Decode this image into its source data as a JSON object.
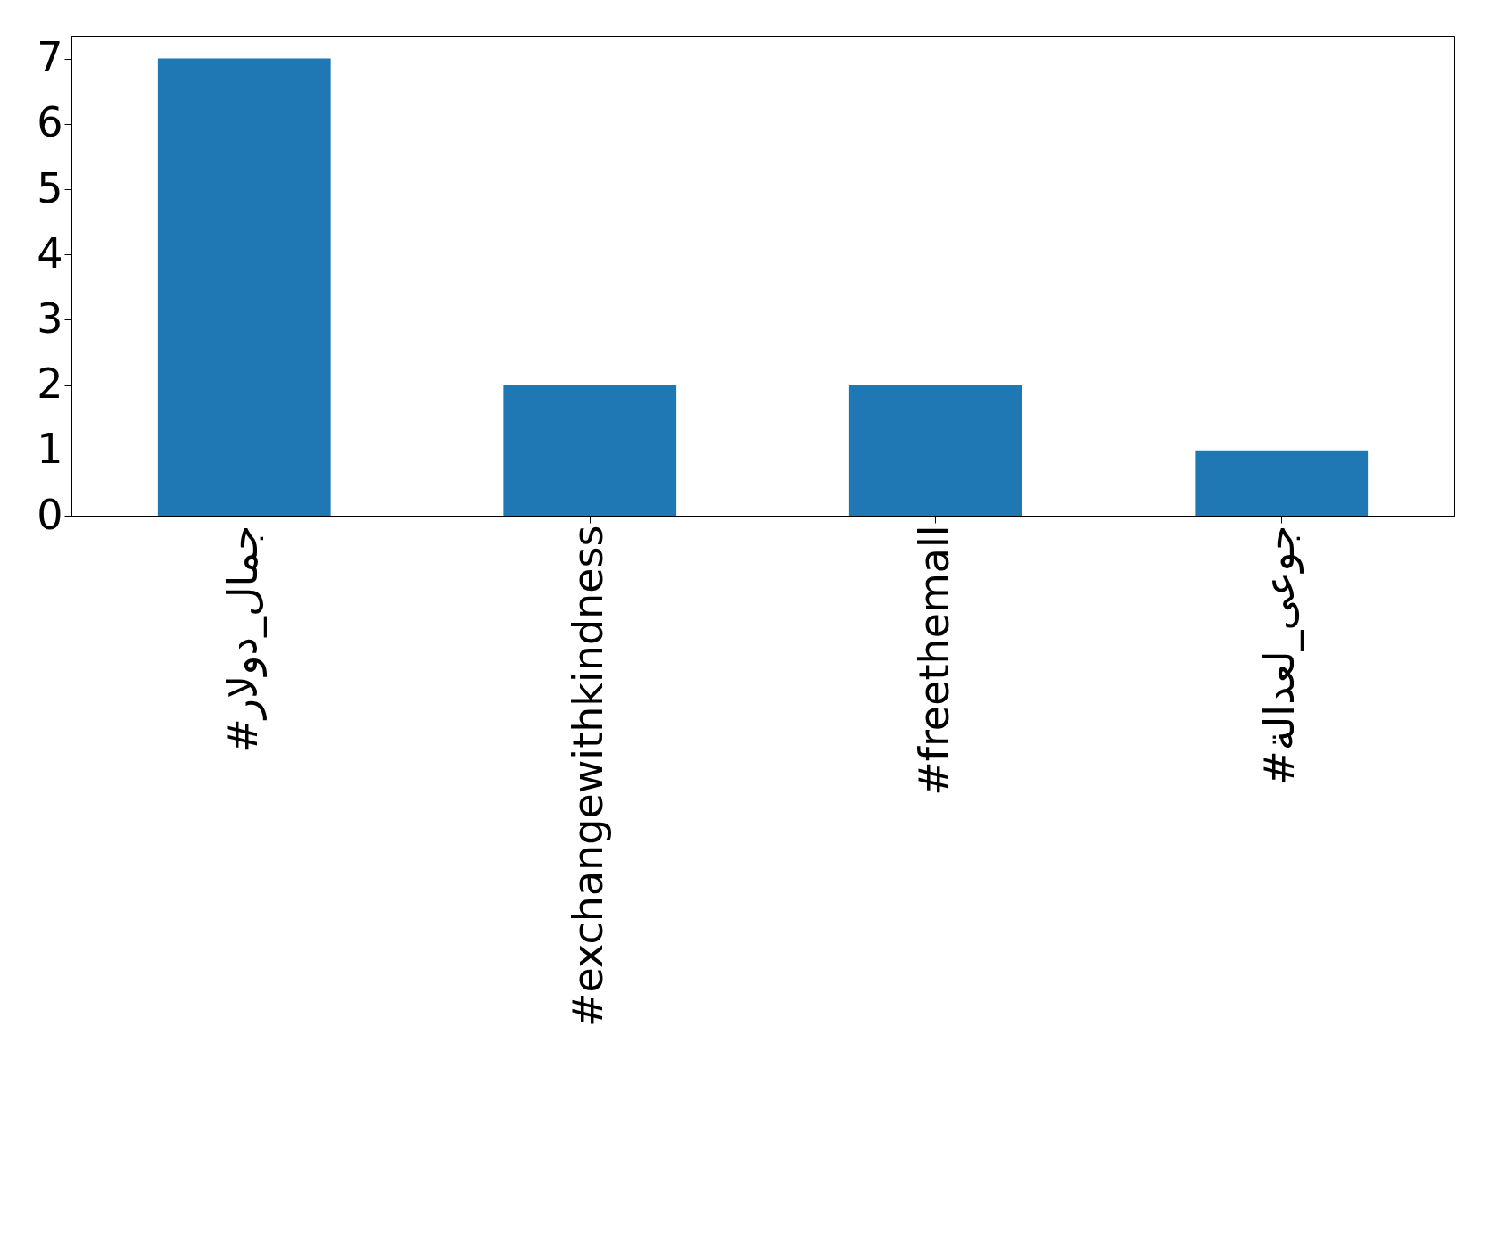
{
  "chart_data": {
    "type": "bar",
    "categories": [
      "#جمال_دولار",
      "#exchangewithkindness",
      "#freethemall",
      "#جوعى_لعدالة"
    ],
    "values": [
      7,
      2,
      2,
      1
    ],
    "color": "#1f77b4",
    "ylim": [
      0,
      7.35
    ],
    "yticks": [
      0,
      1,
      2,
      3,
      4,
      5,
      6,
      7
    ],
    "grid": false
  }
}
